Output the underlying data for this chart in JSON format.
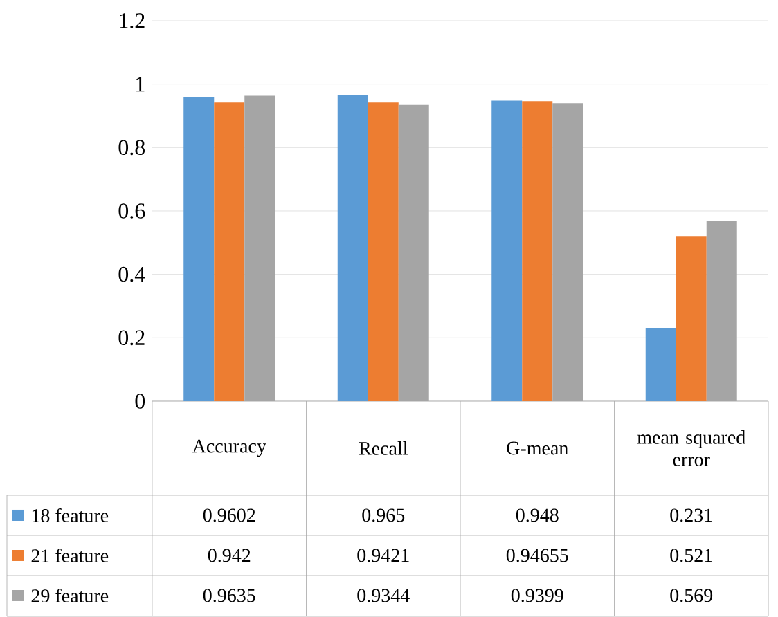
{
  "chart_data": {
    "type": "bar",
    "categories": [
      "Accuracy",
      "Recall",
      "G-mean",
      "mean squared error"
    ],
    "series": [
      {
        "name": "18 feature",
        "color": "#5b9bd5",
        "values": [
          0.9602,
          0.965,
          0.948,
          0.231
        ]
      },
      {
        "name": "21 feature",
        "color": "#ed7d31",
        "values": [
          0.942,
          0.9421,
          0.94655,
          0.521
        ]
      },
      {
        "name": "29 feature",
        "color": "#a5a5a5",
        "values": [
          0.9635,
          0.9344,
          0.9399,
          0.569
        ]
      }
    ],
    "ylim": [
      0,
      1.2
    ],
    "yticks": [
      0,
      0.2,
      0.4,
      0.6,
      0.8,
      1,
      1.2
    ],
    "grid": "y",
    "legend": "bottom left",
    "data_labels": true
  }
}
